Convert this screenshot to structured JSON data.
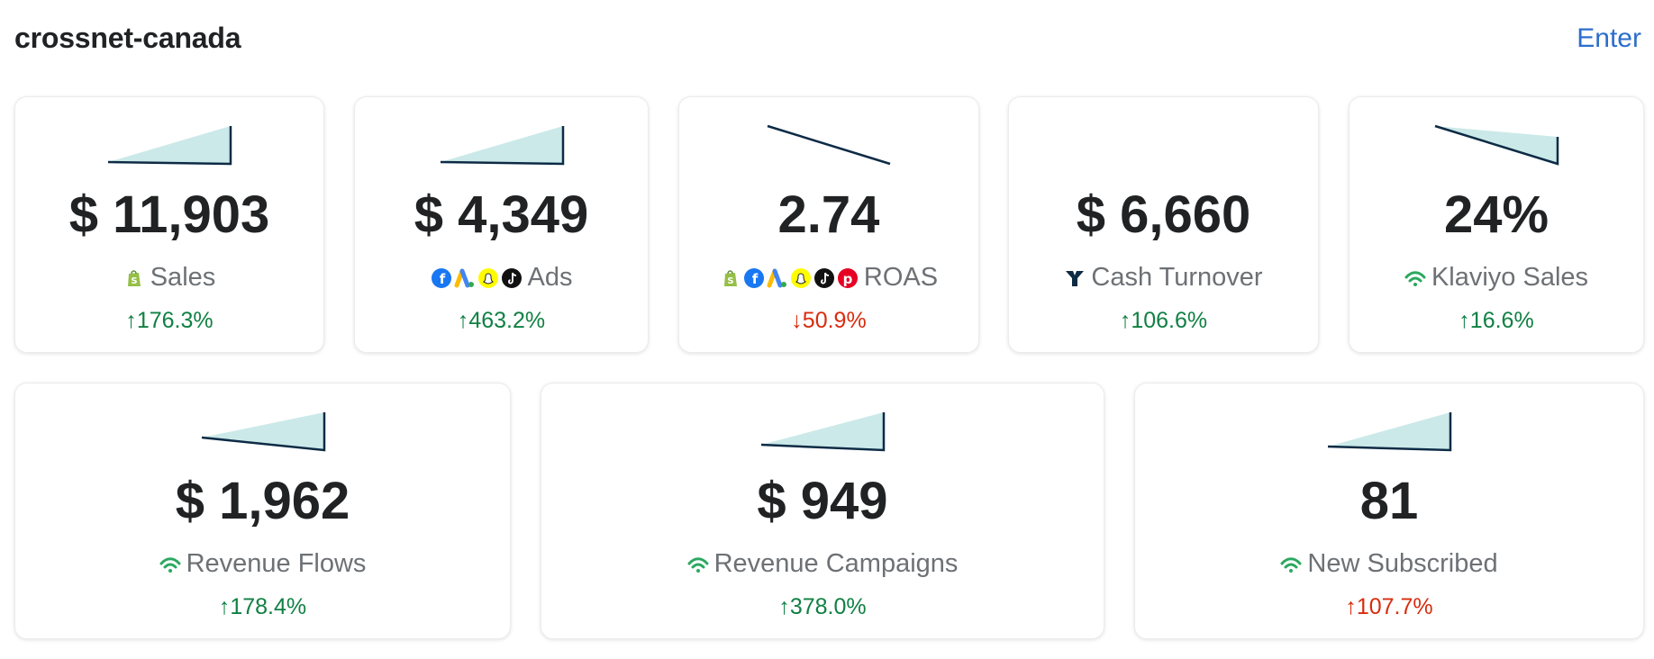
{
  "header": {
    "title": "crossnet-canada",
    "enter_label": "Enter"
  },
  "colors": {
    "positive": "#108043",
    "negative": "#d82c0d",
    "link": "#2c6ecb",
    "spark_fill": "#cbe9e8",
    "spark_line": "#0d2b45"
  },
  "cards": [
    {
      "value": "$ 11,903",
      "label": "Sales",
      "change": "↑176.3%",
      "trend": [
        0,
        1
      ]
    },
    {
      "value": "$ 4,349",
      "label": "Ads",
      "change": "↑463.2%",
      "trend": [
        0,
        1
      ]
    },
    {
      "value": "2.74",
      "label": "ROAS",
      "change": "↓50.9%",
      "trend": [
        1,
        0
      ]
    },
    {
      "value": "$ 6,660",
      "label": "Cash Turnover",
      "change": "↑106.6%",
      "trend": []
    },
    {
      "value": "24%",
      "label": "Klaviyo Sales",
      "change": "↑16.6%",
      "trend": [
        1,
        0
      ]
    },
    {
      "value": "$ 1,962",
      "label": "Revenue Flows",
      "change": "↑178.4%",
      "trend": [
        0,
        1
      ]
    },
    {
      "value": "$ 949",
      "label": "Revenue Campaigns",
      "change": "↑378.0%",
      "trend": [
        0,
        1
      ]
    },
    {
      "value": "81",
      "label": "New Subscribed",
      "change": "↑107.7%",
      "trend": [
        0,
        1
      ]
    }
  ]
}
